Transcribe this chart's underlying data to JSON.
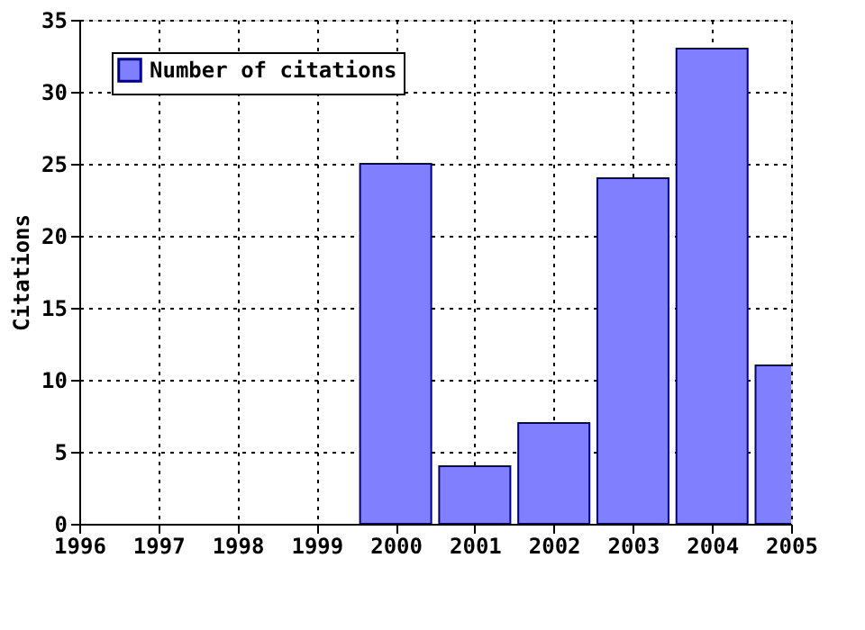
{
  "chart_data": {
    "type": "bar",
    "x": [
      2000,
      2001,
      2002,
      2003,
      2004,
      2005
    ],
    "series": [
      {
        "name": "Number of citations",
        "color": "#8080ff",
        "values": [
          25,
          4,
          7,
          24,
          33,
          11
        ]
      }
    ],
    "ylabel": "Citations",
    "xlim": [
      1996,
      2005
    ],
    "xticks": [
      1996,
      1997,
      1998,
      1999,
      2000,
      2001,
      2002,
      2003,
      2004,
      2005
    ],
    "ylim": [
      0,
      35
    ],
    "yticks": [
      0,
      5,
      10,
      15,
      20,
      25,
      30,
      35
    ],
    "grid": true,
    "legend": "top left"
  }
}
